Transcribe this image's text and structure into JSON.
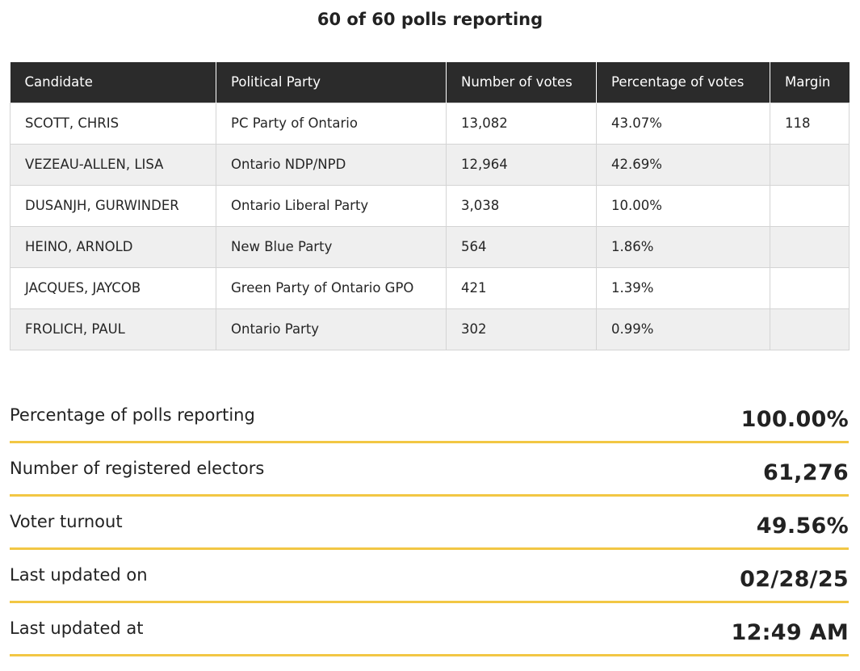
{
  "header": {
    "polls_reporting": "60 of 60 polls reporting"
  },
  "table": {
    "columns": [
      "Candidate",
      "Political Party",
      "Number of votes",
      "Percentage of votes",
      "Margin"
    ],
    "rows": [
      {
        "candidate": "SCOTT, CHRIS",
        "party": "PC Party of Ontario",
        "votes": "13,082",
        "percentage": "43.07%",
        "margin": "118"
      },
      {
        "candidate": "VEZEAU-ALLEN, LISA",
        "party": "Ontario NDP/NPD",
        "votes": "12,964",
        "percentage": "42.69%",
        "margin": ""
      },
      {
        "candidate": "DUSANJH, GURWINDER",
        "party": "Ontario Liberal Party",
        "votes": "3,038",
        "percentage": "10.00%",
        "margin": ""
      },
      {
        "candidate": "HEINO, ARNOLD",
        "party": "New Blue Party",
        "votes": "564",
        "percentage": "1.86%",
        "margin": ""
      },
      {
        "candidate": "JACQUES, JAYCOB",
        "party": "Green Party of Ontario GPO",
        "votes": "421",
        "percentage": "1.39%",
        "margin": ""
      },
      {
        "candidate": "FROLICH, PAUL",
        "party": "Ontario Party",
        "votes": "302",
        "percentage": "0.99%",
        "margin": ""
      }
    ]
  },
  "stats": [
    {
      "label": "Percentage of polls reporting",
      "value": "100.00%"
    },
    {
      "label": "Number of registered electors",
      "value": "61,276"
    },
    {
      "label": "Voter turnout",
      "value": "49.56%"
    },
    {
      "label": "Last updated on",
      "value": "02/28/25"
    },
    {
      "label": "Last updated at",
      "value": "12:49 AM"
    }
  ],
  "colors": {
    "header_bg": "#2b2b2b",
    "stripe_bg": "#efefef",
    "accent_line": "#f2c744"
  }
}
